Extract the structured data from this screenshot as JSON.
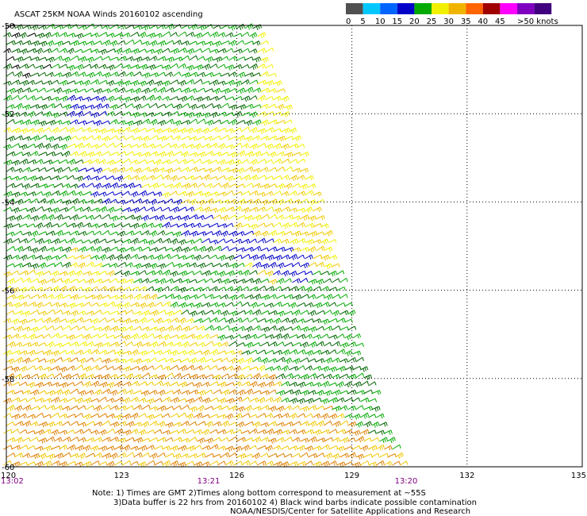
{
  "title": "ASCAT 25KM NOAA Winds 20160102 ascending",
  "color_scale": {
    "labels": [
      "0",
      "5",
      "10",
      "15",
      "20",
      "25",
      "30",
      "35",
      "40",
      "45",
      ">50 knots"
    ],
    "colors": [
      "#505050",
      "#00c8ff",
      "#0064ff",
      "#0000c8",
      "#00aa00",
      "#f0f000",
      "#f0b400",
      "#ff6400",
      "#a00000",
      "#ff00ff",
      "#8000c0",
      "#400080"
    ]
  },
  "axes": {
    "x_ticks": [
      "120",
      "123",
      "126",
      "129",
      "132",
      "135"
    ],
    "y_ticks": [
      "-50",
      "-52",
      "-54",
      "-56",
      "-58",
      "-60"
    ]
  },
  "pass_times": [
    {
      "label": "13:02"
    },
    {
      "label": "13:21"
    },
    {
      "label": "13:20"
    }
  ],
  "notes": {
    "line1": "Note: 1) Times are GMT 2)Times along bottom correspond to measurement at ~55S",
    "line2": "3)Data buffer is 22 hrs from 20160102 4) Black wind barbs indicate possible contamination",
    "line3": "NOAA/NESDIS/Center for Satellite Applications and Research"
  },
  "chart_data": {
    "type": "wind-barb map",
    "lon_range": [
      120,
      135
    ],
    "lat_range": [
      -60,
      -50
    ],
    "grid": true,
    "swath_east_edge": [
      [
        -50,
        126.5
      ],
      [
        -54,
        128.1
      ],
      [
        -58,
        129.4
      ],
      [
        -60,
        130.3
      ]
    ],
    "wind_regions": [
      {
        "color": "green",
        "knots": "15-20",
        "lat": [
          -50,
          -54
        ],
        "lon": [
          120,
          127
        ]
      },
      {
        "color": "blue",
        "knots": "10-15",
        "lat": [
          -53.4,
          -55.8
        ],
        "lon": [
          121.8,
          127.8
        ]
      },
      {
        "color": "green",
        "knots": "15-20",
        "lat": [
          -54,
          -58.5
        ],
        "lon": [
          124,
          129.5
        ]
      },
      {
        "color": "yellow",
        "knots": "20-25",
        "lat": [
          -52,
          -57.5
        ],
        "lon": [
          120,
          128
        ]
      },
      {
        "color": "orange",
        "knots": "25-35",
        "lat": [
          -57,
          -60
        ],
        "lon": [
          120,
          130
        ]
      }
    ]
  }
}
